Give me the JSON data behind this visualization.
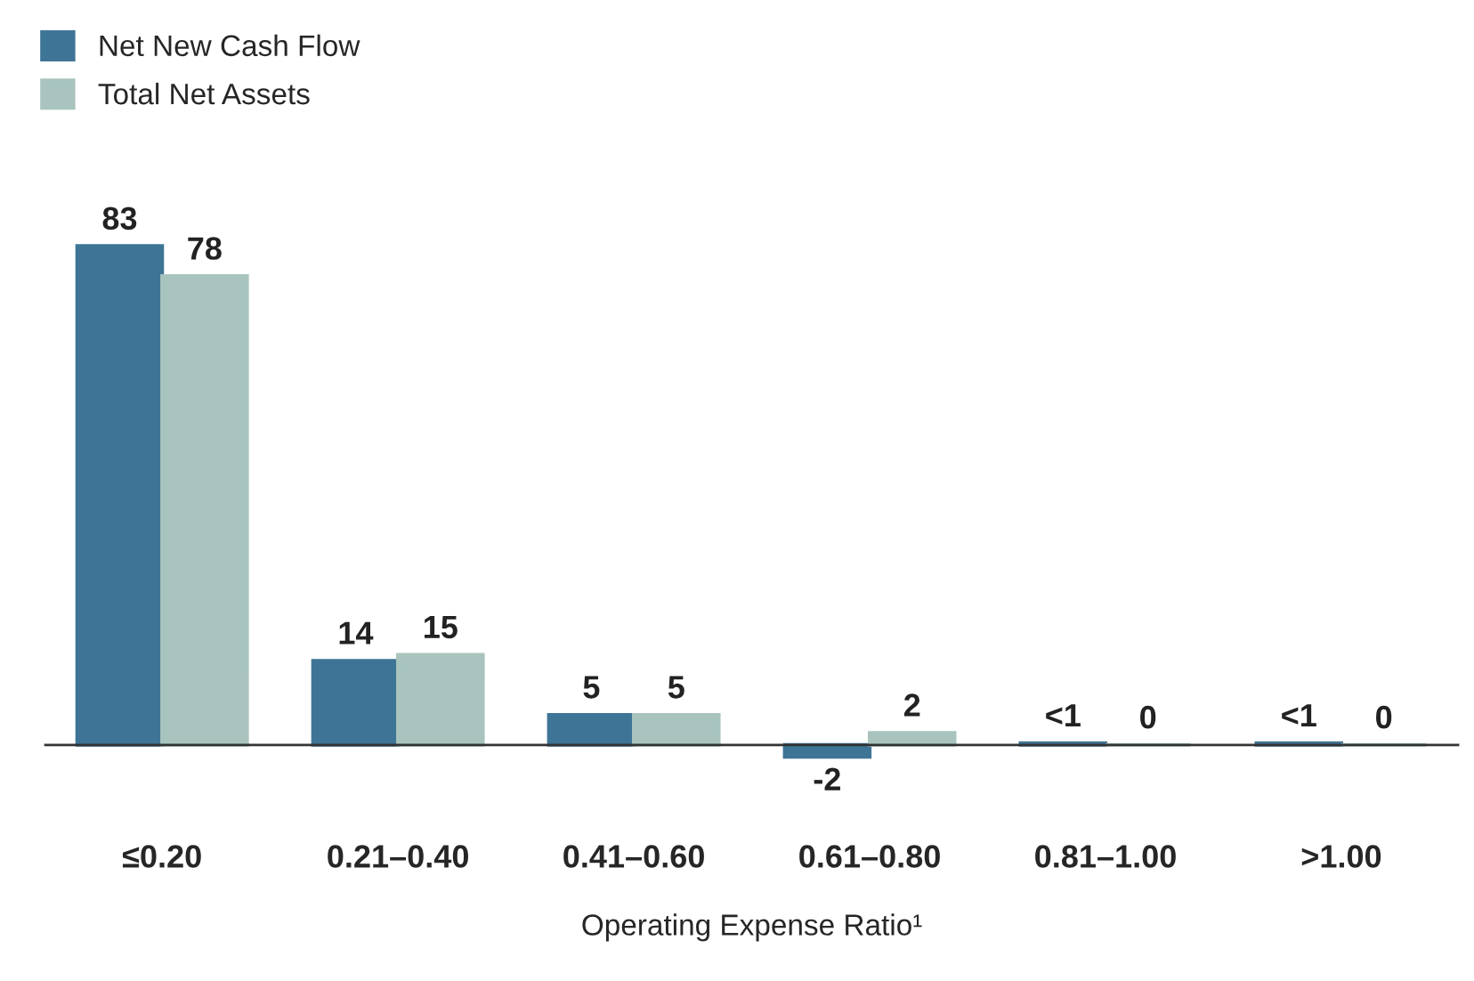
{
  "chart_data": {
    "type": "bar",
    "xlabel": "Operating Expense Ratio¹",
    "categories": [
      "≤0.20",
      "0.21–0.40",
      "0.41–0.60",
      "0.61–0.80",
      "0.81–1.00",
      ">1.00"
    ],
    "series": [
      {
        "name": "Net New Cash Flow",
        "color": "#3e7596",
        "values": [
          83,
          14,
          5,
          -2,
          0.3,
          0.3
        ],
        "value_labels": [
          "83",
          "14",
          "5",
          "-2",
          "<1",
          "<1"
        ]
      },
      {
        "name": "Total Net Assets",
        "color": "#a9c4be",
        "values": [
          78,
          15,
          5,
          2,
          0,
          0
        ],
        "value_labels": [
          "78",
          "15",
          "5",
          "2",
          "0",
          "0"
        ]
      }
    ],
    "legend": "top left",
    "grid": false
  }
}
